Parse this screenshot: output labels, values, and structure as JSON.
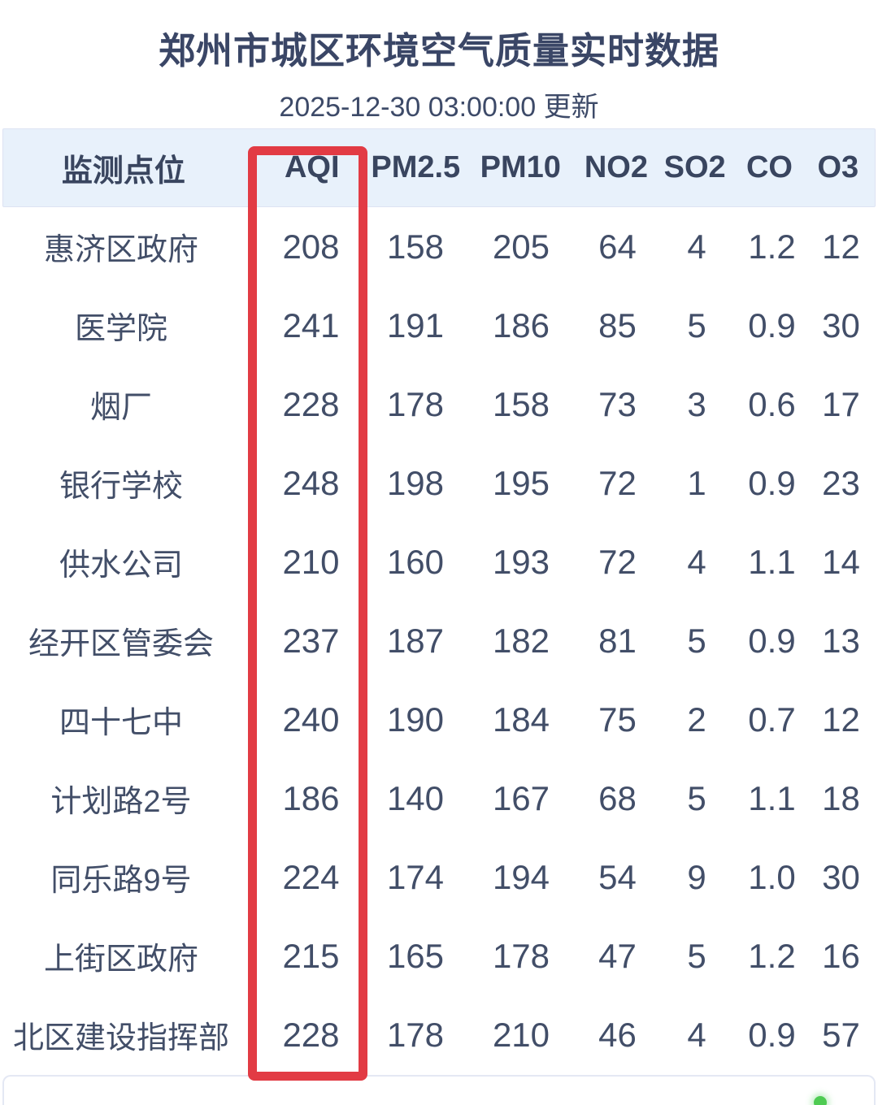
{
  "page": {
    "title": "郑州市城区环境空气质量实时数据",
    "updated": "2025-12-30 03:00:00 更新"
  },
  "table": {
    "columns": [
      "监测点位",
      "AQI",
      "PM2.5",
      "PM10",
      "NO2",
      "SO2",
      "CO",
      "O3"
    ],
    "rows": [
      [
        "惠济区政府",
        "208",
        "158",
        "205",
        "64",
        "4",
        "1.2",
        "12"
      ],
      [
        "医学院",
        "241",
        "191",
        "186",
        "85",
        "5",
        "0.9",
        "30"
      ],
      [
        "烟厂",
        "228",
        "178",
        "158",
        "73",
        "3",
        "0.6",
        "17"
      ],
      [
        "银行学校",
        "248",
        "198",
        "195",
        "72",
        "1",
        "0.9",
        "23"
      ],
      [
        "供水公司",
        "210",
        "160",
        "193",
        "72",
        "4",
        "1.1",
        "14"
      ],
      [
        "经开区管委会",
        "237",
        "187",
        "182",
        "81",
        "5",
        "0.9",
        "13"
      ],
      [
        "四十七中",
        "240",
        "190",
        "184",
        "75",
        "2",
        "0.7",
        "12"
      ],
      [
        "计划路2号",
        "186",
        "140",
        "167",
        "68",
        "5",
        "1.1",
        "18"
      ],
      [
        "同乐路9号",
        "224",
        "174",
        "194",
        "54",
        "9",
        "1.0",
        "30"
      ],
      [
        "上街区政府",
        "215",
        "165",
        "178",
        "47",
        "5",
        "1.2",
        "16"
      ],
      [
        "北区建设指挥部",
        "228",
        "178",
        "210",
        "46",
        "4",
        "0.9",
        "57"
      ]
    ]
  },
  "annotation": {
    "highlighted_column": "AQI",
    "highlight_color": "#e23b44"
  },
  "colors": {
    "header_background": "#e8f1fb",
    "text_navy": "#424e68",
    "status_dot_green": "#4ecb52"
  },
  "chart_data": {
    "type": "table",
    "title": "郑州市城区环境空气质量实时数据",
    "updated": "2025-12-30 03:00:00 更新",
    "columns": [
      "监测点位",
      "AQI",
      "PM2.5",
      "PM10",
      "NO2",
      "SO2",
      "CO",
      "O3"
    ],
    "rows": [
      {
        "site": "惠济区政府",
        "AQI": 208,
        "PM2.5": 158,
        "PM10": 205,
        "NO2": 64,
        "SO2": 4,
        "CO": 1.2,
        "O3": 12
      },
      {
        "site": "医学院",
        "AQI": 241,
        "PM2.5": 191,
        "PM10": 186,
        "NO2": 85,
        "SO2": 5,
        "CO": 0.9,
        "O3": 30
      },
      {
        "site": "烟厂",
        "AQI": 228,
        "PM2.5": 178,
        "PM10": 158,
        "NO2": 73,
        "SO2": 3,
        "CO": 0.6,
        "O3": 17
      },
      {
        "site": "银行学校",
        "AQI": 248,
        "PM2.5": 198,
        "PM10": 195,
        "NO2": 72,
        "SO2": 1,
        "CO": 0.9,
        "O3": 23
      },
      {
        "site": "供水公司",
        "AQI": 210,
        "PM2.5": 160,
        "PM10": 193,
        "NO2": 72,
        "SO2": 4,
        "CO": 1.1,
        "O3": 14
      },
      {
        "site": "经开区管委会",
        "AQI": 237,
        "PM2.5": 187,
        "PM10": 182,
        "NO2": 81,
        "SO2": 5,
        "CO": 0.9,
        "O3": 13
      },
      {
        "site": "四十七中",
        "AQI": 240,
        "PM2.5": 190,
        "PM10": 184,
        "NO2": 75,
        "SO2": 2,
        "CO": 0.7,
        "O3": 12
      },
      {
        "site": "计划路2号",
        "AQI": 186,
        "PM2.5": 140,
        "PM10": 167,
        "NO2": 68,
        "SO2": 5,
        "CO": 1.1,
        "O3": 18
      },
      {
        "site": "同乐路9号",
        "AQI": 224,
        "PM2.5": 174,
        "PM10": 194,
        "NO2": 54,
        "SO2": 9,
        "CO": 1.0,
        "O3": 30
      },
      {
        "site": "上街区政府",
        "AQI": 215,
        "PM2.5": 165,
        "PM10": 178,
        "NO2": 47,
        "SO2": 5,
        "CO": 1.2,
        "O3": 16
      },
      {
        "site": "北区建设指挥部",
        "AQI": 228,
        "PM2.5": 178,
        "PM10": 210,
        "NO2": 46,
        "SO2": 4,
        "CO": 0.9,
        "O3": 57
      }
    ]
  }
}
